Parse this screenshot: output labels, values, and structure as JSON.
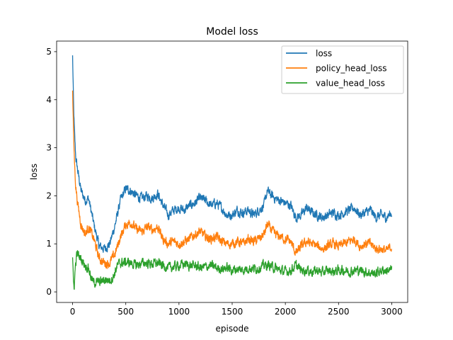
{
  "chart_data": {
    "type": "line",
    "title": "Model loss",
    "xlabel": "episode",
    "ylabel": "loss",
    "xlim": [
      -150,
      3150
    ],
    "ylim": [
      -0.22,
      5.22
    ],
    "xticks": [
      0,
      500,
      1000,
      1500,
      2000,
      2500,
      3000
    ],
    "yticks": [
      0,
      1,
      2,
      3,
      4,
      5
    ],
    "legend_position": "upper-right",
    "noise": 0.07,
    "series": [
      {
        "name": "loss",
        "color": "#1f77b4",
        "x": [
          0,
          10,
          20,
          30,
          50,
          80,
          120,
          150,
          200,
          250,
          300,
          350,
          400,
          450,
          500,
          550,
          600,
          650,
          700,
          750,
          800,
          850,
          900,
          950,
          1000,
          1050,
          1100,
          1150,
          1200,
          1250,
          1300,
          1350,
          1400,
          1450,
          1500,
          1550,
          1600,
          1650,
          1700,
          1750,
          1800,
          1830,
          1850,
          1900,
          1950,
          2000,
          2050,
          2100,
          2150,
          2200,
          2250,
          2300,
          2350,
          2400,
          2450,
          2500,
          2550,
          2600,
          2650,
          2700,
          2750,
          2800,
          2850,
          2900,
          2950,
          3000
        ],
        "y": [
          4.9,
          3.8,
          3.2,
          2.8,
          2.5,
          2.1,
          1.9,
          1.95,
          1.4,
          0.95,
          0.9,
          1.0,
          1.4,
          1.9,
          2.15,
          2.1,
          2.0,
          1.95,
          2.0,
          1.95,
          2.05,
          1.8,
          1.6,
          1.7,
          1.75,
          1.7,
          1.8,
          1.85,
          1.95,
          1.9,
          1.8,
          1.85,
          1.75,
          1.6,
          1.6,
          1.7,
          1.65,
          1.7,
          1.6,
          1.7,
          1.8,
          2.1,
          2.05,
          1.95,
          1.9,
          1.85,
          1.8,
          1.55,
          1.6,
          1.75,
          1.65,
          1.6,
          1.55,
          1.6,
          1.65,
          1.6,
          1.65,
          1.7,
          1.75,
          1.6,
          1.65,
          1.7,
          1.55,
          1.6,
          1.55,
          1.65
        ]
      },
      {
        "name": "policy_head_loss",
        "color": "#ff7f0e",
        "x": [
          0,
          10,
          20,
          30,
          50,
          80,
          120,
          150,
          200,
          250,
          300,
          350,
          400,
          450,
          500,
          550,
          600,
          650,
          700,
          750,
          800,
          850,
          900,
          950,
          1000,
          1050,
          1100,
          1150,
          1200,
          1250,
          1300,
          1350,
          1400,
          1450,
          1500,
          1550,
          1600,
          1650,
          1700,
          1750,
          1800,
          1830,
          1850,
          1900,
          1950,
          2000,
          2050,
          2100,
          2150,
          2200,
          2250,
          2300,
          2350,
          2400,
          2450,
          2500,
          2550,
          2600,
          2650,
          2700,
          2750,
          2800,
          2850,
          2900,
          2950,
          3000
        ],
        "y": [
          4.15,
          3.2,
          2.6,
          2.2,
          1.8,
          1.4,
          1.2,
          1.35,
          1.1,
          0.7,
          0.6,
          0.6,
          0.8,
          1.15,
          1.4,
          1.45,
          1.3,
          1.25,
          1.35,
          1.3,
          1.35,
          1.1,
          1.0,
          1.05,
          1.0,
          1.05,
          1.1,
          1.2,
          1.25,
          1.15,
          1.1,
          1.15,
          1.05,
          1.0,
          1.0,
          1.05,
          1.0,
          1.1,
          1.05,
          1.1,
          1.2,
          1.4,
          1.35,
          1.2,
          1.15,
          1.1,
          1.05,
          0.8,
          0.95,
          1.05,
          1.0,
          0.95,
          0.9,
          0.95,
          1.0,
          0.95,
          1.0,
          1.05,
          1.1,
          0.95,
          1.0,
          1.0,
          0.9,
          0.9,
          0.85,
          0.95
        ]
      },
      {
        "name": "value_head_loss",
        "color": "#2ca02c",
        "x": [
          0,
          8,
          15,
          25,
          40,
          60,
          90,
          120,
          150,
          180,
          200,
          250,
          300,
          350,
          380,
          420,
          450,
          500,
          550,
          600,
          650,
          700,
          750,
          800,
          850,
          900,
          950,
          1000,
          1050,
          1100,
          1150,
          1200,
          1250,
          1300,
          1350,
          1400,
          1450,
          1500,
          1550,
          1600,
          1650,
          1700,
          1750,
          1800,
          1850,
          1900,
          1950,
          2000,
          2050,
          2100,
          2150,
          2200,
          2250,
          2300,
          2350,
          2400,
          2450,
          2500,
          2550,
          2600,
          2650,
          2700,
          2750,
          2800,
          2850,
          2900,
          2950,
          3000
        ],
        "y": [
          0.75,
          0.15,
          0.1,
          0.5,
          0.8,
          0.75,
          0.65,
          0.55,
          0.5,
          0.25,
          0.2,
          0.2,
          0.25,
          0.25,
          0.3,
          0.55,
          0.6,
          0.62,
          0.6,
          0.55,
          0.6,
          0.6,
          0.58,
          0.6,
          0.55,
          0.5,
          0.52,
          0.55,
          0.58,
          0.55,
          0.55,
          0.5,
          0.52,
          0.55,
          0.5,
          0.48,
          0.5,
          0.45,
          0.48,
          0.45,
          0.5,
          0.48,
          0.5,
          0.55,
          0.55,
          0.5,
          0.45,
          0.42,
          0.45,
          0.55,
          0.45,
          0.45,
          0.42,
          0.45,
          0.4,
          0.45,
          0.42,
          0.45,
          0.45,
          0.42,
          0.45,
          0.45,
          0.42,
          0.4,
          0.38,
          0.45,
          0.45,
          0.45
        ]
      }
    ]
  }
}
